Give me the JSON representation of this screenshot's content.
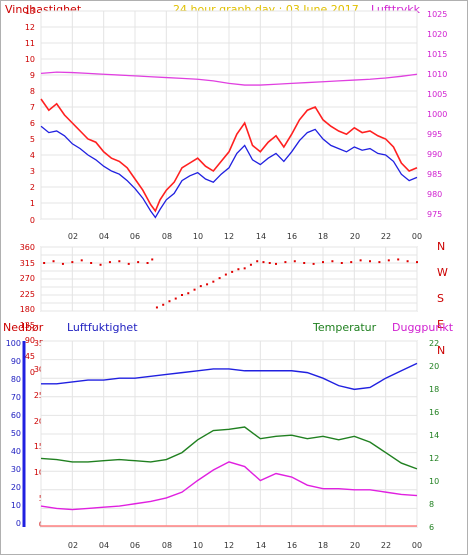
{
  "chart_data": [
    {
      "type": "line",
      "title": "24 hour graph day : 03 June 2017",
      "left_label": "Vindhastighet",
      "right_label": "Lufttrykk",
      "x_ticks": [
        "02",
        "04",
        "06",
        "08",
        "10",
        "12",
        "14",
        "16",
        "18",
        "20",
        "22",
        "00"
      ],
      "y_left_ticks": [
        0,
        1,
        2,
        3,
        4,
        5,
        6,
        7,
        8,
        9,
        10,
        11,
        12,
        13
      ],
      "y_right_ticks": [
        975,
        980,
        985,
        990,
        995,
        1000,
        1005,
        1010,
        1015,
        1020,
        1025
      ],
      "y_left_lim": [
        0,
        13
      ],
      "y_right_lim": [
        975,
        1025
      ],
      "series": [
        {
          "name": "Vindhastighet (gust)",
          "color": "#ff2020",
          "points": [
            [
              0,
              7.5
            ],
            [
              0.5,
              6.8
            ],
            [
              1.0,
              7.2
            ],
            [
              1.5,
              6.5
            ],
            [
              2.0,
              6.0
            ],
            [
              2.5,
              5.5
            ],
            [
              3.0,
              5.0
            ],
            [
              3.5,
              4.8
            ],
            [
              4.0,
              4.2
            ],
            [
              4.5,
              3.8
            ],
            [
              5.0,
              3.6
            ],
            [
              5.5,
              3.2
            ],
            [
              6.0,
              2.5
            ],
            [
              6.5,
              1.8
            ],
            [
              7.0,
              0.9
            ],
            [
              7.3,
              0.5
            ],
            [
              7.6,
              1.2
            ],
            [
              8.0,
              1.8
            ],
            [
              8.5,
              2.3
            ],
            [
              9.0,
              3.2
            ],
            [
              9.5,
              3.5
            ],
            [
              10.0,
              3.8
            ],
            [
              10.5,
              3.3
            ],
            [
              11.0,
              3.0
            ],
            [
              11.5,
              3.6
            ],
            [
              12.0,
              4.2
            ],
            [
              12.5,
              5.3
            ],
            [
              13.0,
              6.0
            ],
            [
              13.5,
              4.6
            ],
            [
              14.0,
              4.2
            ],
            [
              14.5,
              4.8
            ],
            [
              15.0,
              5.2
            ],
            [
              15.5,
              4.5
            ],
            [
              16.0,
              5.3
            ],
            [
              16.5,
              6.2
            ],
            [
              17.0,
              6.8
            ],
            [
              17.5,
              7.0
            ],
            [
              18.0,
              6.2
            ],
            [
              18.5,
              5.8
            ],
            [
              19.0,
              5.5
            ],
            [
              19.5,
              5.3
            ],
            [
              20.0,
              5.7
            ],
            [
              20.5,
              5.4
            ],
            [
              21.0,
              5.5
            ],
            [
              21.5,
              5.2
            ],
            [
              22.0,
              5.0
            ],
            [
              22.5,
              4.5
            ],
            [
              23.0,
              3.5
            ],
            [
              23.5,
              3.0
            ],
            [
              24.0,
              3.2
            ]
          ]
        },
        {
          "name": "Vindhastighet (average)",
          "color": "#2020e0",
          "points": [
            [
              0,
              5.8
            ],
            [
              0.5,
              5.4
            ],
            [
              1.0,
              5.5
            ],
            [
              1.5,
              5.2
            ],
            [
              2.0,
              4.7
            ],
            [
              2.5,
              4.4
            ],
            [
              3.0,
              4.0
            ],
            [
              3.5,
              3.7
            ],
            [
              4.0,
              3.3
            ],
            [
              4.5,
              3.0
            ],
            [
              5.0,
              2.8
            ],
            [
              5.5,
              2.4
            ],
            [
              6.0,
              1.9
            ],
            [
              6.5,
              1.3
            ],
            [
              7.0,
              0.5
            ],
            [
              7.3,
              0.1
            ],
            [
              7.6,
              0.6
            ],
            [
              8.0,
              1.2
            ],
            [
              8.5,
              1.6
            ],
            [
              9.0,
              2.4
            ],
            [
              9.5,
              2.7
            ],
            [
              10.0,
              2.9
            ],
            [
              10.5,
              2.5
            ],
            [
              11.0,
              2.3
            ],
            [
              11.5,
              2.8
            ],
            [
              12.0,
              3.2
            ],
            [
              12.5,
              4.1
            ],
            [
              13.0,
              4.6
            ],
            [
              13.5,
              3.7
            ],
            [
              14.0,
              3.4
            ],
            [
              14.5,
              3.8
            ],
            [
              15.0,
              4.1
            ],
            [
              15.5,
              3.6
            ],
            [
              16.0,
              4.2
            ],
            [
              16.5,
              4.9
            ],
            [
              17.0,
              5.4
            ],
            [
              17.5,
              5.6
            ],
            [
              18.0,
              5.0
            ],
            [
              18.5,
              4.6
            ],
            [
              19.0,
              4.4
            ],
            [
              19.5,
              4.2
            ],
            [
              20.0,
              4.5
            ],
            [
              20.5,
              4.3
            ],
            [
              21.0,
              4.4
            ],
            [
              21.5,
              4.1
            ],
            [
              22.0,
              4.0
            ],
            [
              22.5,
              3.6
            ],
            [
              23.0,
              2.8
            ],
            [
              23.5,
              2.4
            ],
            [
              24.0,
              2.6
            ]
          ]
        },
        {
          "name": "Lufttrykk",
          "color": "#e040e0",
          "axis": "right",
          "points": [
            [
              0,
              1010.0
            ],
            [
              1,
              1010.3
            ],
            [
              2,
              1010.2
            ],
            [
              3,
              1010.0
            ],
            [
              4,
              1009.8
            ],
            [
              5,
              1009.6
            ],
            [
              6,
              1009.4
            ],
            [
              7,
              1009.2
            ],
            [
              8,
              1009.0
            ],
            [
              9,
              1008.8
            ],
            [
              10,
              1008.6
            ],
            [
              11,
              1008.2
            ],
            [
              12,
              1007.6
            ],
            [
              13,
              1007.2
            ],
            [
              14,
              1007.2
            ],
            [
              15,
              1007.4
            ],
            [
              16,
              1007.6
            ],
            [
              17,
              1007.8
            ],
            [
              18,
              1008.0
            ],
            [
              19,
              1008.2
            ],
            [
              20,
              1008.4
            ],
            [
              21,
              1008.6
            ],
            [
              22,
              1008.9
            ],
            [
              23,
              1009.3
            ],
            [
              24,
              1009.8
            ]
          ]
        }
      ]
    },
    {
      "type": "scatter",
      "right_labels": [
        "N",
        "W",
        "S",
        "E",
        "N"
      ],
      "y_ticks": [
        0,
        45,
        90,
        135,
        180,
        225,
        270,
        315,
        360
      ],
      "y_lim": [
        0,
        360
      ],
      "series": [
        {
          "name": "Vindretning",
          "color": "#e00000",
          "points": [
            [
              0.2,
              270
            ],
            [
              0.8,
              280
            ],
            [
              1.4,
              265
            ],
            [
              2.0,
              275
            ],
            [
              2.6,
              285
            ],
            [
              3.2,
              270
            ],
            [
              3.8,
              260
            ],
            [
              4.4,
              275
            ],
            [
              5.0,
              280
            ],
            [
              5.6,
              265
            ],
            [
              6.2,
              275
            ],
            [
              6.8,
              270
            ],
            [
              7.1,
              290
            ],
            [
              7.4,
              20
            ],
            [
              7.8,
              35
            ],
            [
              8.2,
              55
            ],
            [
              8.6,
              70
            ],
            [
              9.0,
              90
            ],
            [
              9.4,
              100
            ],
            [
              9.8,
              120
            ],
            [
              10.2,
              140
            ],
            [
              10.6,
              150
            ],
            [
              11.0,
              165
            ],
            [
              11.4,
              185
            ],
            [
              11.8,
              205
            ],
            [
              12.2,
              220
            ],
            [
              12.6,
              235
            ],
            [
              13.0,
              240
            ],
            [
              13.4,
              260
            ],
            [
              13.8,
              280
            ],
            [
              14.2,
              275
            ],
            [
              14.6,
              270
            ],
            [
              15.0,
              265
            ],
            [
              15.6,
              275
            ],
            [
              16.2,
              280
            ],
            [
              16.8,
              270
            ],
            [
              17.4,
              265
            ],
            [
              18.0,
              275
            ],
            [
              18.6,
              280
            ],
            [
              19.2,
              270
            ],
            [
              19.8,
              275
            ],
            [
              20.4,
              285
            ],
            [
              21.0,
              280
            ],
            [
              21.6,
              275
            ],
            [
              22.2,
              285
            ],
            [
              22.8,
              290
            ],
            [
              23.4,
              280
            ],
            [
              24.0,
              275
            ]
          ]
        }
      ]
    },
    {
      "type": "line",
      "labels": {
        "nedbor": "Nedbør",
        "luftfuktighet": "Luftfuktighet",
        "temperatur": "Temperatur",
        "duggpunkt": "Duggpunkt"
      },
      "x_ticks": [
        "02",
        "04",
        "06",
        "08",
        "10",
        "12",
        "14",
        "16",
        "18",
        "20",
        "22",
        "00"
      ],
      "y_nedbor_ticks": [
        0,
        10,
        20,
        30,
        40,
        50,
        60,
        70,
        80,
        90,
        100
      ],
      "y_luft_ticks": [
        0,
        5,
        10,
        15,
        20,
        25,
        30,
        35
      ],
      "y_temp_ticks": [
        6,
        8,
        10,
        12,
        14,
        16,
        18,
        20,
        22
      ],
      "y_luft_lim": [
        0,
        35
      ],
      "y_temp_lim": [
        6,
        22
      ],
      "series": [
        {
          "name": "Luftfuktighet",
          "color": "#2020e0",
          "points": [
            [
              0,
              77
            ],
            [
              1,
              77
            ],
            [
              2,
              78
            ],
            [
              3,
              79
            ],
            [
              4,
              79
            ],
            [
              5,
              80
            ],
            [
              6,
              80
            ],
            [
              7,
              81
            ],
            [
              8,
              82
            ],
            [
              9,
              83
            ],
            [
              10,
              84
            ],
            [
              11,
              85
            ],
            [
              12,
              85
            ],
            [
              13,
              84
            ],
            [
              14,
              84
            ],
            [
              15,
              84
            ],
            [
              16,
              84
            ],
            [
              17,
              83
            ],
            [
              18,
              80
            ],
            [
              19,
              76
            ],
            [
              20,
              74
            ],
            [
              21,
              75
            ],
            [
              22,
              80
            ],
            [
              23,
              84
            ],
            [
              24,
              88
            ]
          ]
        },
        {
          "name": "Temperatur",
          "color": "#208020",
          "points": [
            [
              0,
              11.9
            ],
            [
              1,
              11.8
            ],
            [
              2,
              11.6
            ],
            [
              3,
              11.6
            ],
            [
              4,
              11.7
            ],
            [
              5,
              11.8
            ],
            [
              6,
              11.7
            ],
            [
              7,
              11.6
            ],
            [
              8,
              11.8
            ],
            [
              9,
              12.4
            ],
            [
              10,
              13.5
            ],
            [
              11,
              14.3
            ],
            [
              12,
              14.4
            ],
            [
              13,
              14.6
            ],
            [
              14,
              13.6
            ],
            [
              15,
              13.8
            ],
            [
              16,
              13.9
            ],
            [
              17,
              13.6
            ],
            [
              18,
              13.8
            ],
            [
              19,
              13.5
            ],
            [
              20,
              13.8
            ],
            [
              21,
              13.3
            ],
            [
              22,
              12.4
            ],
            [
              23,
              11.5
            ],
            [
              24,
              11.0
            ]
          ]
        },
        {
          "name": "Duggpunkt",
          "color": "#e020e0",
          "points": [
            [
              0,
              7.8
            ],
            [
              1,
              7.6
            ],
            [
              2,
              7.5
            ],
            [
              3,
              7.6
            ],
            [
              4,
              7.7
            ],
            [
              5,
              7.8
            ],
            [
              6,
              8.0
            ],
            [
              7,
              8.2
            ],
            [
              8,
              8.5
            ],
            [
              9,
              9.0
            ],
            [
              10,
              10.0
            ],
            [
              11,
              10.9
            ],
            [
              12,
              11.6
            ],
            [
              13,
              11.2
            ],
            [
              14,
              10.0
            ],
            [
              15,
              10.6
            ],
            [
              16,
              10.3
            ],
            [
              17,
              9.6
            ],
            [
              18,
              9.3
            ],
            [
              19,
              9.3
            ],
            [
              20,
              9.2
            ],
            [
              21,
              9.2
            ],
            [
              22,
              9.0
            ],
            [
              23,
              8.8
            ],
            [
              24,
              8.7
            ]
          ]
        },
        {
          "name": "Nedbør",
          "color": "#ff8080",
          "points": [
            [
              0,
              0
            ],
            [
              24,
              0
            ]
          ]
        }
      ]
    }
  ]
}
